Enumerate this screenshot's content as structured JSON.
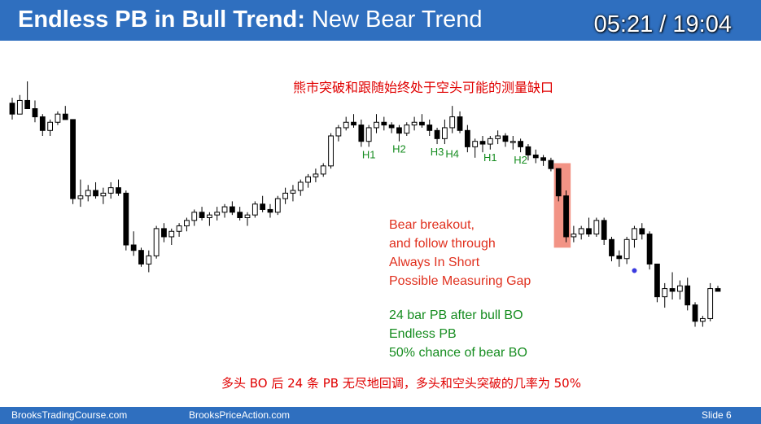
{
  "header": {
    "title_bold": "Endless PB in Bull Trend:",
    "title_rest": "New Bear Trend",
    "timer": "05:21 / 19:04"
  },
  "annotations": {
    "cn_title": "熊市突破和跟随始终处于空头可能的测量缺口",
    "red_lines": [
      "Bear breakout,",
      "and follow through",
      "Always In Short",
      "Possible Measuring Gap"
    ],
    "green_lines": [
      "24 bar PB after bull BO",
      "Endless PB",
      "50% chance of bear BO"
    ],
    "cn_bottom": "多头 BO 后 24 条 PB 无尽地回调，多头和空头突破的几率为 50%"
  },
  "footer": {
    "left": "BrooksTradingCourse.com",
    "center": "BrooksPriceAction.com",
    "slide": "Slide  6"
  },
  "colors": {
    "header_bg": "#2f6fbf",
    "bear_candle": "#000000",
    "bull_candle": "#ffffff",
    "highlight": "#f08070",
    "red_text": "#e0301e",
    "green_text": "#158c1f",
    "marker": "#3a3adf"
  },
  "chart_data": {
    "type": "candlestick",
    "price_range": [
      0,
      100
    ],
    "bars": [
      [
        92,
        94,
        86,
        88
      ],
      [
        88,
        95,
        88,
        93
      ],
      [
        93,
        100,
        90,
        90
      ],
      [
        90,
        93,
        85,
        87
      ],
      [
        87,
        88,
        80,
        82
      ],
      [
        82,
        86,
        80,
        85
      ],
      [
        85,
        89,
        84,
        88
      ],
      [
        88,
        91,
        86,
        86
      ],
      [
        86,
        86,
        55,
        57
      ],
      [
        57,
        64,
        54,
        58
      ],
      [
        58,
        62,
        56,
        60
      ],
      [
        60,
        63,
        57,
        58
      ],
      [
        58,
        61,
        55,
        59
      ],
      [
        59,
        63,
        57,
        61
      ],
      [
        61,
        64,
        58,
        59
      ],
      [
        59,
        60,
        38,
        40
      ],
      [
        40,
        45,
        36,
        38
      ],
      [
        38,
        39,
        32,
        33
      ],
      [
        33,
        38,
        30,
        36
      ],
      [
        36,
        47,
        35,
        46
      ],
      [
        46,
        48,
        41,
        43
      ],
      [
        43,
        46,
        40,
        45
      ],
      [
        45,
        48,
        43,
        47
      ],
      [
        47,
        50,
        45,
        49
      ],
      [
        49,
        53,
        47,
        52
      ],
      [
        52,
        54,
        49,
        50
      ],
      [
        50,
        52,
        47,
        51
      ],
      [
        51,
        54,
        49,
        52
      ],
      [
        52,
        55,
        50,
        54
      ],
      [
        54,
        56,
        51,
        52
      ],
      [
        52,
        54,
        49,
        50
      ],
      [
        50,
        52,
        47,
        51
      ],
      [
        51,
        56,
        50,
        55
      ],
      [
        55,
        58,
        52,
        53
      ],
      [
        53,
        55,
        50,
        52
      ],
      [
        52,
        58,
        51,
        57
      ],
      [
        57,
        61,
        55,
        59
      ],
      [
        59,
        62,
        56,
        60
      ],
      [
        60,
        64,
        58,
        63
      ],
      [
        63,
        66,
        61,
        65
      ],
      [
        65,
        68,
        63,
        66
      ],
      [
        66,
        70,
        65,
        69
      ],
      [
        69,
        81,
        68,
        80
      ],
      [
        80,
        84,
        78,
        83
      ],
      [
        83,
        87,
        82,
        85
      ],
      [
        85,
        88,
        83,
        84
      ],
      [
        84,
        86,
        76,
        78
      ],
      [
        78,
        84,
        76,
        83
      ],
      [
        83,
        88,
        81,
        85
      ],
      [
        85,
        87,
        82,
        84
      ],
      [
        84,
        85,
        81,
        83
      ],
      [
        83,
        84,
        78,
        81
      ],
      [
        81,
        85,
        80,
        84
      ],
      [
        84,
        87,
        82,
        85
      ],
      [
        85,
        88,
        83,
        84
      ],
      [
        84,
        86,
        80,
        82
      ],
      [
        82,
        83,
        77,
        79
      ],
      [
        79,
        86,
        77,
        83
      ],
      [
        83,
        91,
        81,
        87
      ],
      [
        87,
        89,
        81,
        82
      ],
      [
        82,
        84,
        74,
        76
      ],
      [
        76,
        79,
        72,
        78
      ],
      [
        78,
        80,
        74,
        77
      ],
      [
        77,
        80,
        75,
        79
      ],
      [
        79,
        82,
        77,
        80
      ],
      [
        80,
        81,
        76,
        78
      ],
      [
        78,
        80,
        75,
        78
      ],
      [
        78,
        79,
        74,
        76
      ],
      [
        76,
        77,
        71,
        73
      ],
      [
        73,
        75,
        70,
        72
      ],
      [
        72,
        73,
        69,
        71
      ],
      [
        71,
        72,
        67,
        68
      ],
      [
        68,
        68,
        56,
        58
      ],
      [
        58,
        60,
        41,
        43
      ],
      [
        43,
        47,
        41,
        44
      ],
      [
        44,
        47,
        42,
        46
      ],
      [
        46,
        50,
        43,
        44
      ],
      [
        44,
        50,
        43,
        49
      ],
      [
        49,
        50,
        40,
        42
      ],
      [
        42,
        43,
        34,
        36
      ],
      [
        36,
        38,
        32,
        35
      ],
      [
        35,
        43,
        33,
        42
      ],
      [
        42,
        47,
        39,
        46
      ],
      [
        46,
        48,
        42,
        44
      ],
      [
        44,
        45,
        31,
        33
      ],
      [
        33,
        33,
        19,
        21
      ],
      [
        21,
        26,
        17,
        24
      ],
      [
        24,
        30,
        20,
        23
      ],
      [
        23,
        27,
        20,
        25
      ],
      [
        25,
        28,
        16,
        18
      ],
      [
        18,
        19,
        10,
        12
      ],
      [
        12,
        14,
        10,
        13
      ],
      [
        13,
        26,
        12,
        24
      ],
      [
        24,
        25,
        23,
        23
      ]
    ],
    "pullback_labels": [
      "H1",
      "H2",
      "H3",
      "H4",
      "H1",
      "H2"
    ]
  }
}
